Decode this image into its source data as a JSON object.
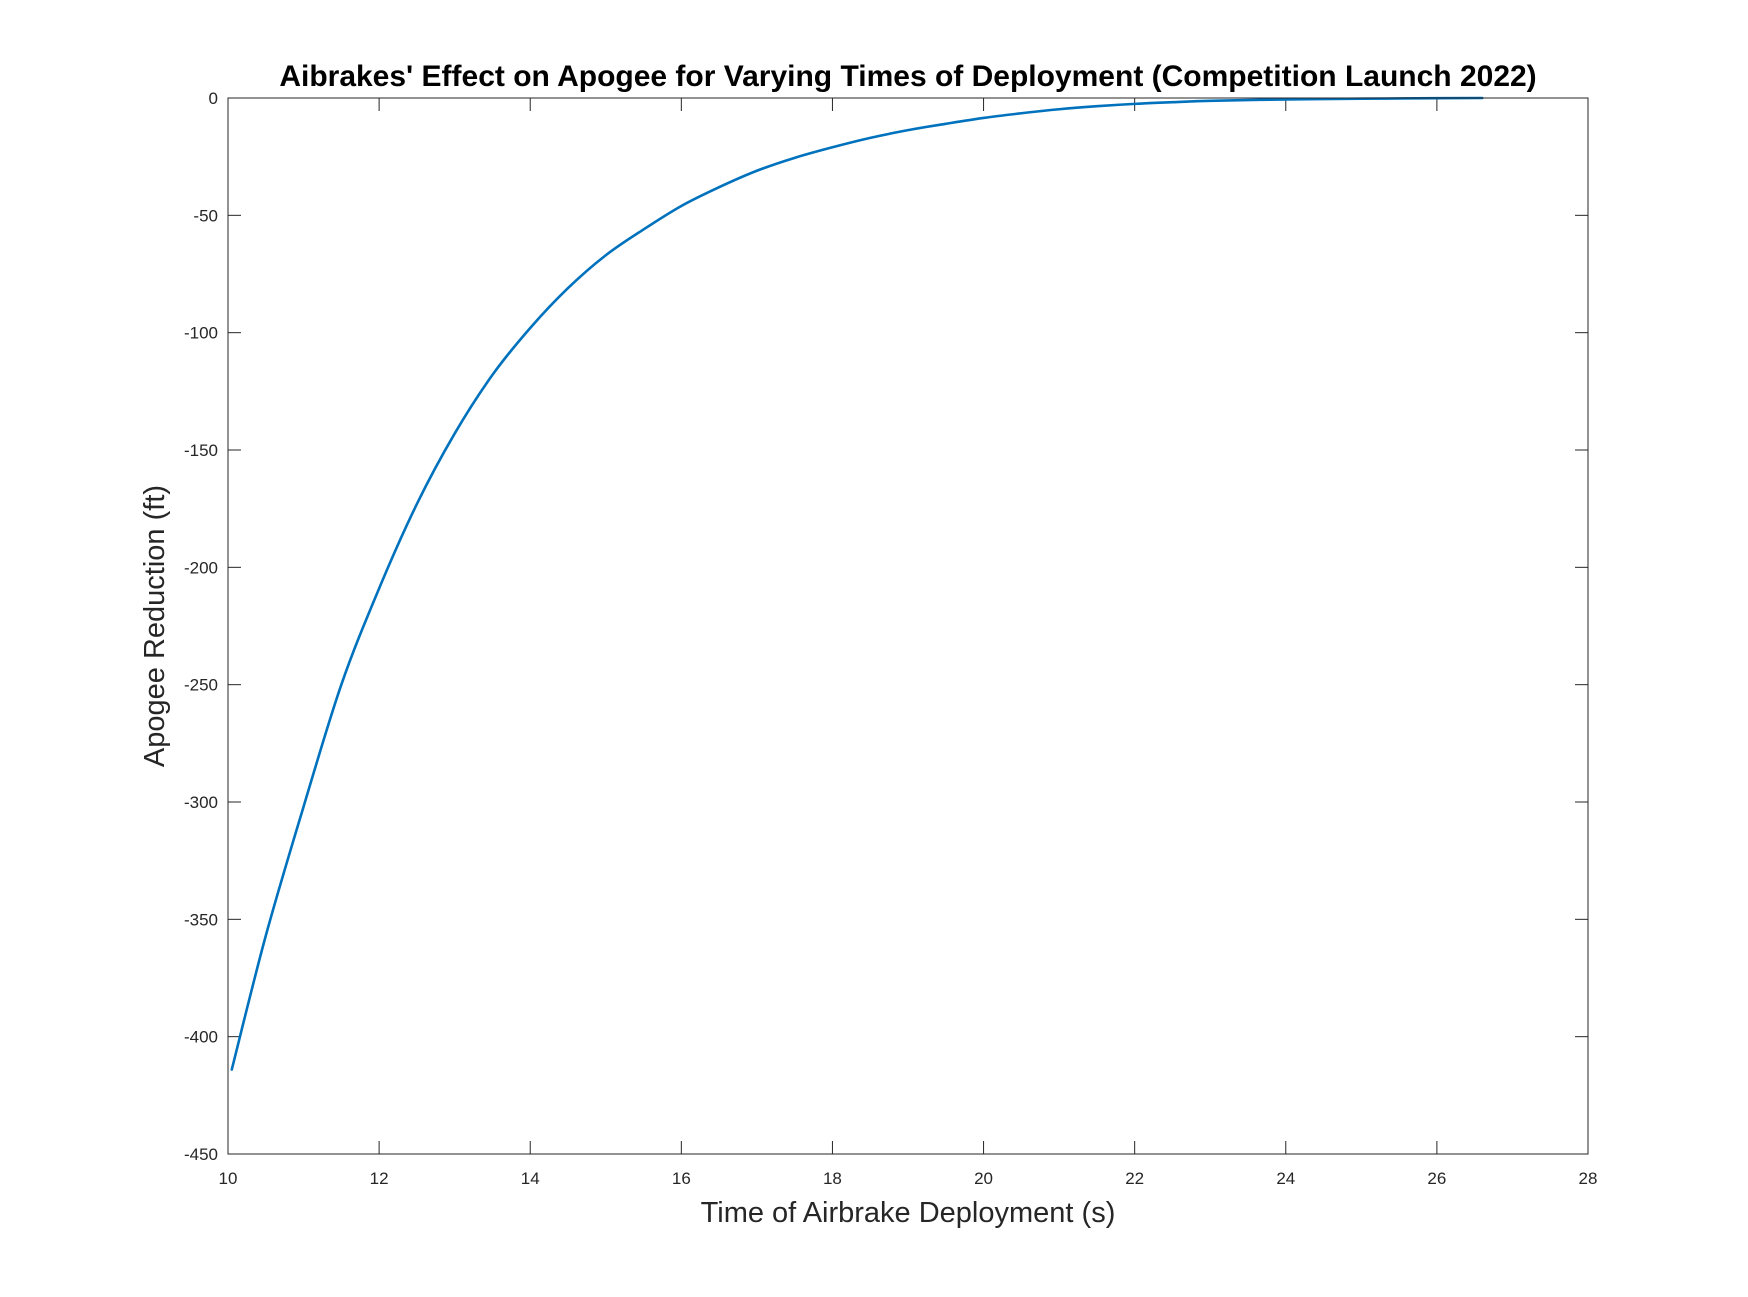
{
  "chart_data": {
    "type": "line",
    "title": "Aibrakes' Effect on Apogee for Varying Times of Deployment (Competition Launch 2022)",
    "xlabel": "Time of Airbrake Deployment (s)",
    "ylabel": "Apogee Reduction (ft)",
    "xlim": [
      10,
      28
    ],
    "ylim": [
      -450,
      0
    ],
    "xticks": [
      10,
      12,
      14,
      16,
      18,
      20,
      22,
      24,
      26,
      28
    ],
    "yticks": [
      0,
      -50,
      -100,
      -150,
      -200,
      -250,
      -300,
      -350,
      -400,
      -450
    ],
    "grid": false,
    "legend": "none",
    "line_color": "#0072bd",
    "series": [
      {
        "x": [
          10.05,
          10.5,
          11,
          11.5,
          12,
          12.5,
          13,
          13.5,
          14,
          14.5,
          15,
          15.5,
          16,
          16.5,
          17,
          17.5,
          18,
          18.5,
          19,
          19.5,
          20,
          20.5,
          21,
          21.5,
          22,
          22.5,
          23,
          24,
          25,
          26,
          26.6
        ],
        "y": [
          -414,
          -357,
          -302,
          -250,
          -209,
          -173,
          -143,
          -118,
          -98,
          -81,
          -67,
          -56,
          -46,
          -38,
          -31,
          -25.5,
          -21,
          -17,
          -13.7,
          -11,
          -8.5,
          -6.5,
          -4.8,
          -3.5,
          -2.5,
          -1.8,
          -1.2,
          -0.6,
          -0.3,
          -0.1,
          0
        ]
      }
    ]
  }
}
